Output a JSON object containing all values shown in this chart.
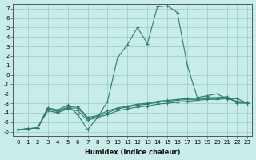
{
  "x": [
    0,
    1,
    2,
    3,
    4,
    5,
    6,
    7,
    8,
    9,
    10,
    11,
    12,
    13,
    14,
    15,
    16,
    17,
    18,
    19,
    20,
    21,
    22,
    23
  ],
  "line_spike": [
    -5.8,
    -5.7,
    -5.6,
    -3.5,
    -3.7,
    -3.2,
    -4.2,
    -5.8,
    -4.5,
    -2.8,
    1.8,
    3.2,
    5.0,
    3.3,
    7.2,
    7.3,
    6.6,
    1.0,
    -2.4,
    -2.2,
    -2.0,
    -2.6,
    -2.5,
    -3.0
  ],
  "line_a": [
    -5.8,
    -5.7,
    -5.6,
    -3.5,
    -3.8,
    -3.4,
    -3.3,
    -4.5,
    -4.3,
    -3.8,
    -3.5,
    -3.3,
    -3.1,
    -3.0,
    -2.8,
    -2.7,
    -2.6,
    -2.5,
    -2.5,
    -2.4,
    -2.4,
    -2.3,
    -3.0,
    -3.0
  ],
  "line_b": [
    -5.8,
    -5.7,
    -5.6,
    -3.8,
    -4.0,
    -3.6,
    -3.8,
    -4.8,
    -4.5,
    -4.2,
    -3.8,
    -3.6,
    -3.4,
    -3.3,
    -3.1,
    -3.0,
    -2.9,
    -2.8,
    -2.7,
    -2.6,
    -2.6,
    -2.5,
    -2.8,
    -2.9
  ],
  "line_c": [
    -5.8,
    -5.7,
    -5.6,
    -3.6,
    -3.9,
    -3.5,
    -3.5,
    -4.6,
    -4.4,
    -4.0,
    -3.6,
    -3.4,
    -3.2,
    -3.1,
    -2.9,
    -2.8,
    -2.7,
    -2.6,
    -2.6,
    -2.5,
    -2.5,
    -2.4,
    -2.9,
    -2.95
  ],
  "line_color": "#2e7d6e",
  "bg_color": "#c8ece8",
  "grid_color": "#9ecfcc",
  "xlabel": "Humidex (Indice chaleur)",
  "xlim": [
    -0.5,
    23.5
  ],
  "ylim": [
    -6.5,
    7.5
  ],
  "yticks": [
    7,
    6,
    5,
    4,
    3,
    2,
    1,
    0,
    -1,
    -2,
    -3,
    -4,
    -5,
    -6
  ],
  "xticks": [
    0,
    1,
    2,
    3,
    4,
    5,
    6,
    7,
    8,
    9,
    10,
    11,
    12,
    13,
    14,
    15,
    16,
    17,
    18,
    19,
    20,
    21,
    22,
    23
  ],
  "xtick_labels": [
    "0",
    "1",
    "2",
    "3",
    "4",
    "5",
    "6",
    "7",
    "8",
    "9",
    "10",
    "11",
    "12",
    "13",
    "14",
    "15",
    "16",
    "17",
    "18",
    "19",
    "20",
    "21",
    "22",
    "23"
  ]
}
